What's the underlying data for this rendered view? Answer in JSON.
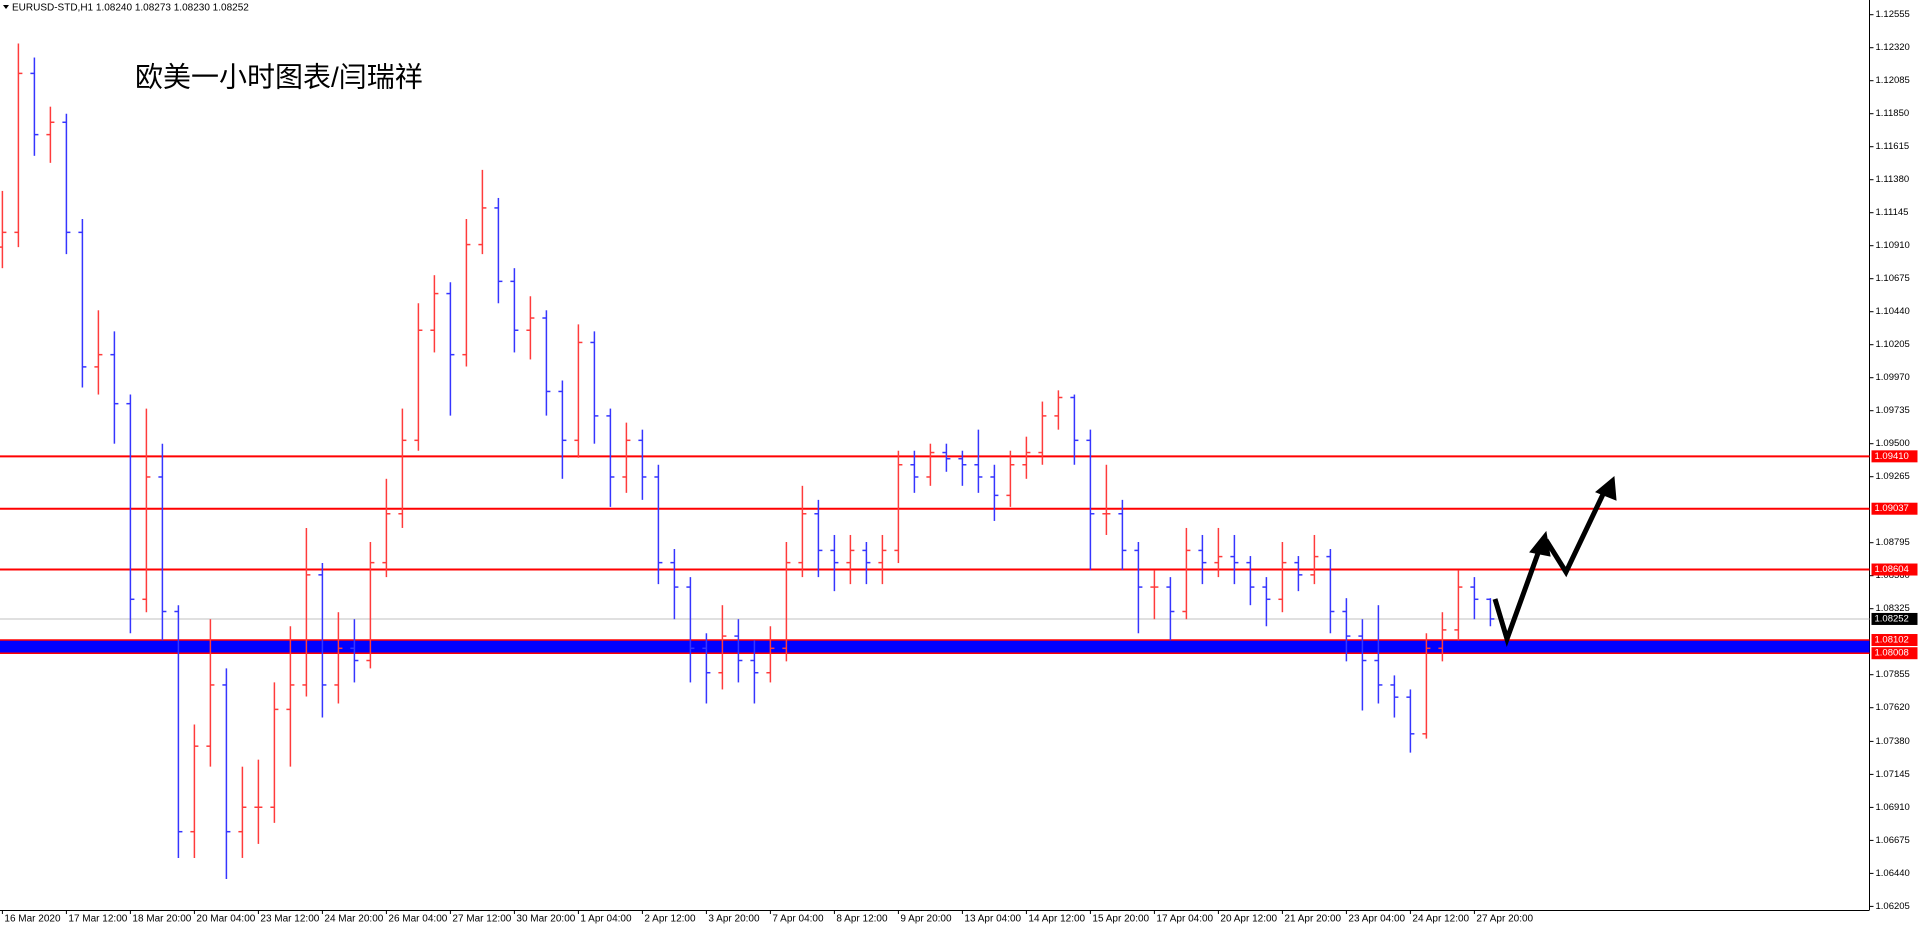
{
  "chart_data": {
    "type": "ohlc",
    "header": "EURUSD-STD,H1  1.08240 1.08273 1.08230 1.08252",
    "title": "欧美一小时图表/闫瑞祥",
    "up_color": "#ff3b3b",
    "down_color": "#3535ff",
    "ylim": [
      1.06205,
      1.12555
    ],
    "yticks": [
      1.12555,
      {
        "value": 1.1232,
        "label": "1.12320"
      },
      1.12085,
      {
        "value": 1.1185,
        "label": "1.11850"
      },
      1.11615,
      {
        "value": 1.1138,
        "label": "1.11380"
      },
      1.11145,
      {
        "value": 1.1091,
        "label": "1.10910"
      },
      1.10675,
      {
        "value": 1.1044,
        "label": "1.10440"
      },
      1.10205,
      {
        "value": 1.0997,
        "label": "1.09970"
      },
      1.09735,
      {
        "value": 1.095,
        "label": "1.09500"
      },
      1.09265,
      1.08795,
      {
        "value": 1.0856,
        "label": "1.08560"
      },
      1.08325,
      1.07855,
      {
        "value": 1.0762,
        "label": "1.07620"
      },
      {
        "value": 1.0738,
        "label": "1.07380"
      },
      1.07145,
      {
        "value": 1.0691,
        "label": "1.06910"
      },
      1.06675,
      {
        "value": 1.0644,
        "label": "1.06440"
      },
      1.06205
    ],
    "x_labels": [
      "16 Mar 2020",
      "17 Mar 12:00",
      "18 Mar 20:00",
      "20 Mar 04:00",
      "23 Mar 12:00",
      "24 Mar 20:00",
      "26 Mar 04:00",
      "27 Mar 12:00",
      "30 Mar 20:00",
      "1 Apr 04:00",
      "2 Apr 12:00",
      "3 Apr 20:00",
      "7 Apr 04:00",
      "8 Apr 12:00",
      "9 Apr 20:00",
      "13 Apr 04:00",
      "14 Apr 12:00",
      "15 Apr 20:00",
      "17 Apr 04:00",
      "20 Apr 12:00",
      "21 Apr 20:00",
      "23 Apr 04:00",
      "24 Apr 12:00",
      "27 Apr 20:00"
    ],
    "levels": [
      {
        "value": 1.0941,
        "label": "1.09410",
        "color": "#ff0000"
      },
      {
        "value": 1.09037,
        "label": "1.09037",
        "color": "#ff0000"
      },
      {
        "value": 1.08604,
        "label": "1.08604",
        "color": "#ff0000"
      }
    ],
    "band": {
      "high": 1.08102,
      "low": 1.08008,
      "color": "#0000ff",
      "edge_color": "#ff0000"
    },
    "current_price": 1.08252,
    "ohlc": [
      [
        1.109,
        1.113,
        1.1075,
        1.11005
      ],
      [
        1.11005,
        1.1235,
        1.109,
        1.12137
      ],
      [
        1.12137,
        1.1225,
        1.1155,
        1.11701
      ],
      [
        1.11701,
        1.119,
        1.115,
        1.11789
      ],
      [
        1.11789,
        1.1185,
        1.1085,
        1.11005
      ],
      [
        1.11005,
        1.111,
        1.099,
        1.10047
      ],
      [
        1.10047,
        1.1045,
        1.0985,
        1.10134
      ],
      [
        1.10134,
        1.103,
        1.095,
        1.09785
      ],
      [
        1.09785,
        1.0985,
        1.0815,
        1.08392
      ],
      [
        1.08392,
        1.0975,
        1.083,
        1.09263
      ],
      [
        1.09263,
        1.095,
        1.081,
        1.08305
      ],
      [
        1.08305,
        1.0835,
        1.0655,
        1.06737
      ],
      [
        1.06737,
        1.075,
        1.0655,
        1.07346
      ],
      [
        1.07346,
        1.0825,
        1.072,
        1.07782
      ],
      [
        1.07782,
        1.079,
        1.064,
        1.06737
      ],
      [
        1.06737,
        1.072,
        1.0655,
        1.06911
      ],
      [
        1.06911,
        1.0725,
        1.0665,
        1.06911
      ],
      [
        1.06911,
        1.078,
        1.068,
        1.07608
      ],
      [
        1.07608,
        1.082,
        1.072,
        1.07782
      ],
      [
        1.07782,
        1.089,
        1.077,
        1.08566
      ],
      [
        1.08566,
        1.0865,
        1.0755,
        1.07782
      ],
      [
        1.07782,
        1.083,
        1.0765,
        1.08043
      ],
      [
        1.08043,
        1.0825,
        1.078,
        1.07956
      ],
      [
        1.07956,
        1.088,
        1.079,
        1.08653
      ],
      [
        1.08653,
        1.0925,
        1.0855,
        1.09001
      ],
      [
        1.09001,
        1.0975,
        1.089,
        1.09524
      ],
      [
        1.09524,
        1.105,
        1.0945,
        1.10308
      ],
      [
        1.10308,
        1.107,
        1.1015,
        1.10569
      ],
      [
        1.10569,
        1.1065,
        1.097,
        1.10134
      ],
      [
        1.10134,
        1.111,
        1.1005,
        1.10918
      ],
      [
        1.10918,
        1.1145,
        1.1085,
        1.11179
      ],
      [
        1.11179,
        1.1125,
        1.105,
        1.10656
      ],
      [
        1.10656,
        1.1075,
        1.1015,
        1.10308
      ],
      [
        1.10308,
        1.1055,
        1.101,
        1.10395
      ],
      [
        1.10395,
        1.1045,
        1.097,
        1.09872
      ],
      [
        1.09872,
        1.0995,
        1.0925,
        1.09524
      ],
      [
        1.09524,
        1.1035,
        1.094,
        1.10221
      ],
      [
        1.10221,
        1.103,
        1.095,
        1.09698
      ],
      [
        1.09698,
        1.0975,
        1.0905,
        1.09263
      ],
      [
        1.09263,
        1.0965,
        1.0915,
        1.09524
      ],
      [
        1.09524,
        1.096,
        1.091,
        1.09263
      ],
      [
        1.09263,
        1.0935,
        1.085,
        1.08653
      ],
      [
        1.08653,
        1.0875,
        1.0825,
        1.08479
      ],
      [
        1.08479,
        1.0855,
        1.078,
        1.08043
      ],
      [
        1.08043,
        1.0815,
        1.0765,
        1.07869
      ],
      [
        1.07869,
        1.0835,
        1.0775,
        1.0813
      ],
      [
        1.0813,
        1.0825,
        1.078,
        1.07956
      ],
      [
        1.07956,
        1.081,
        1.0765,
        1.07869
      ],
      [
        1.07869,
        1.082,
        1.078,
        1.08043
      ],
      [
        1.08043,
        1.088,
        1.0795,
        1.08653
      ],
      [
        1.08653,
        1.092,
        1.0855,
        1.09001
      ],
      [
        1.09001,
        1.091,
        1.0855,
        1.0874
      ],
      [
        1.0874,
        1.0885,
        1.0845,
        1.08653
      ],
      [
        1.08653,
        1.0885,
        1.085,
        1.0874
      ],
      [
        1.0874,
        1.088,
        1.085,
        1.08653
      ],
      [
        1.08653,
        1.0885,
        1.085,
        1.0874
      ],
      [
        1.0874,
        1.0945,
        1.0865,
        1.0935
      ],
      [
        1.0935,
        1.0945,
        1.0915,
        1.09263
      ],
      [
        1.09263,
        1.095,
        1.092,
        1.09437
      ],
      [
        1.09437,
        1.095,
        1.093,
        1.09393
      ],
      [
        1.09393,
        1.0945,
        1.092,
        1.0935
      ],
      [
        1.0935,
        1.096,
        1.0915,
        1.09263
      ],
      [
        1.09263,
        1.0935,
        1.0895,
        1.09132
      ],
      [
        1.09132,
        1.0945,
        1.0905,
        1.0935
      ],
      [
        1.0935,
        1.0955,
        1.0925,
        1.09437
      ],
      [
        1.09437,
        1.098,
        1.0935,
        1.09698
      ],
      [
        1.09698,
        1.0988,
        1.096,
        1.09829
      ],
      [
        1.09829,
        1.0985,
        1.0935,
        1.09524
      ],
      [
        1.09524,
        1.096,
        1.086,
        1.09001
      ],
      [
        1.09001,
        1.0935,
        1.0885,
        1.09001
      ],
      [
        1.09001,
        1.091,
        1.086,
        1.0874
      ],
      [
        1.0874,
        1.088,
        1.0815,
        1.08479
      ],
      [
        1.08479,
        1.086,
        1.0825,
        1.08479
      ],
      [
        1.08479,
        1.0855,
        1.081,
        1.08305
      ],
      [
        1.08305,
        1.089,
        1.0825,
        1.0874
      ],
      [
        1.0874,
        1.0885,
        1.085,
        1.08653
      ],
      [
        1.08653,
        1.089,
        1.0855,
        1.08696
      ],
      [
        1.08696,
        1.0885,
        1.085,
        1.08653
      ],
      [
        1.08653,
        1.087,
        1.0835,
        1.08479
      ],
      [
        1.08479,
        1.0855,
        1.082,
        1.08392
      ],
      [
        1.08392,
        1.088,
        1.083,
        1.08653
      ],
      [
        1.08653,
        1.087,
        1.0845,
        1.08566
      ],
      [
        1.08566,
        1.0885,
        1.085,
        1.08696
      ],
      [
        1.08696,
        1.0875,
        1.0815,
        1.08305
      ],
      [
        1.08305,
        1.084,
        1.0795,
        1.0813
      ],
      [
        1.0813,
        1.0825,
        1.076,
        1.07956
      ],
      [
        1.07956,
        1.0835,
        1.0765,
        1.07782
      ],
      [
        1.07782,
        1.0785,
        1.0755,
        1.07695
      ],
      [
        1.07695,
        1.0775,
        1.073,
        1.07434
      ],
      [
        1.07434,
        1.0815,
        1.074,
        1.08043
      ],
      [
        1.08043,
        1.083,
        1.0795,
        1.08174
      ],
      [
        1.08174,
        1.086,
        1.081,
        1.08479
      ],
      [
        1.08479,
        1.0855,
        1.0825,
        1.08392
      ],
      [
        1.08392,
        1.084,
        1.082,
        1.08252
      ]
    ]
  }
}
